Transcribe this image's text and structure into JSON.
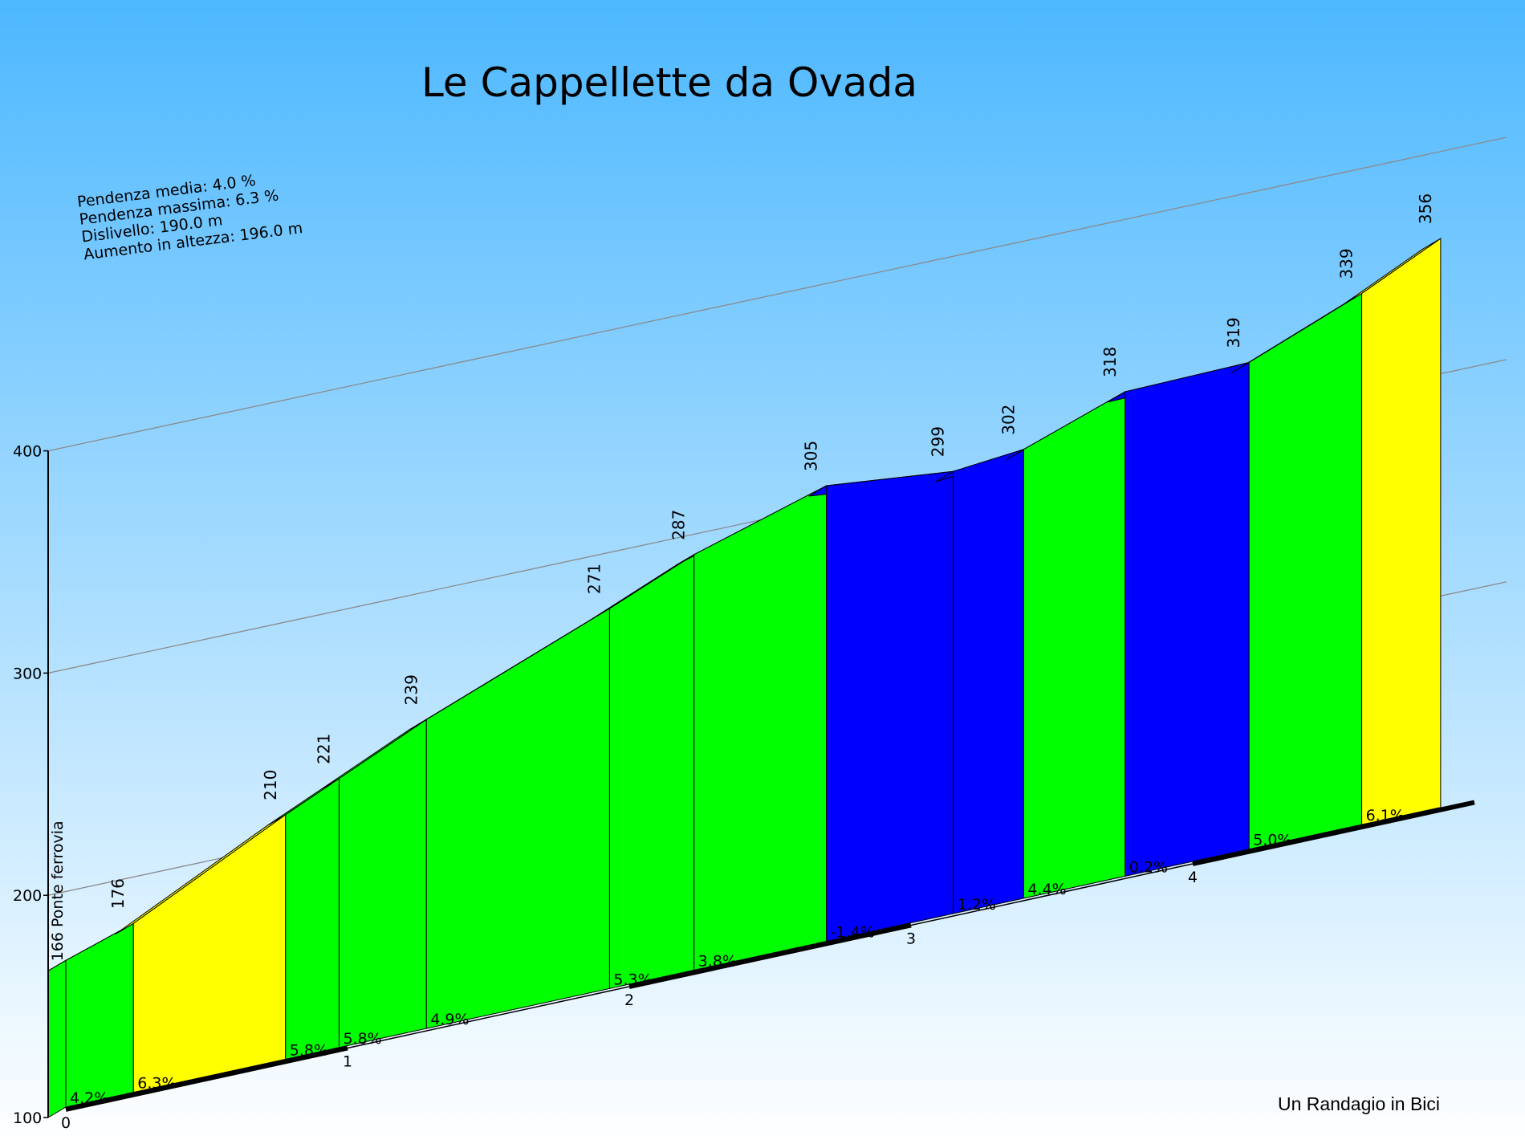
{
  "chart_data": {
    "type": "area",
    "title": "Le Cappellette da Ovada",
    "stats": [
      "Pendenza media: 4.0 %",
      "Pendenza massima: 6.3 %",
      "Dislivello: 190.0 m",
      "Aumento in altezza: 196.0 m"
    ],
    "y_ticks": [
      "100",
      "200",
      "300",
      "400"
    ],
    "ylim": [
      100,
      400
    ],
    "x_ticks": [
      "0",
      "1",
      "2",
      "3",
      "4"
    ],
    "start_label": "166 Ponte ferrovia",
    "points": [
      {
        "km": 0.0,
        "elev": 166
      },
      {
        "km": 0.24,
        "elev": 176,
        "label": "176"
      },
      {
        "km": 0.78,
        "elev": 210,
        "label": "210"
      },
      {
        "km": 0.97,
        "elev": 221,
        "label": "221"
      },
      {
        "km": 1.28,
        "elev": 239,
        "label": "239"
      },
      {
        "km": 1.93,
        "elev": 271,
        "label": "271"
      },
      {
        "km": 2.23,
        "elev": 287,
        "label": "287"
      },
      {
        "km": 2.7,
        "elev": 305,
        "label": "305"
      },
      {
        "km": 3.15,
        "elev": 299,
        "label": "299"
      },
      {
        "km": 3.4,
        "elev": 302,
        "label": "302"
      },
      {
        "km": 3.76,
        "elev": 318,
        "label": "318"
      },
      {
        "km": 4.2,
        "elev": 319,
        "label": "319"
      },
      {
        "km": 4.6,
        "elev": 339,
        "label": "339"
      },
      {
        "km": 4.88,
        "elev": 356,
        "label": "356"
      }
    ],
    "segments": [
      {
        "gradient": "4.2%",
        "color": "#00ff00"
      },
      {
        "gradient": "6.3%",
        "color": "#ffff00"
      },
      {
        "gradient": "5.8%",
        "color": "#00ff00"
      },
      {
        "gradient": "5.8%",
        "color": "#00ff00"
      },
      {
        "gradient": "4.9%",
        "color": "#00ff00"
      },
      {
        "gradient": "5.3%",
        "color": "#00ff00"
      },
      {
        "gradient": "3.8%",
        "color": "#00ff00"
      },
      {
        "gradient": "-1.4%",
        "color": "#0000ff"
      },
      {
        "gradient": "1.2%",
        "color": "#0000ff"
      },
      {
        "gradient": "4.4%",
        "color": "#00ff00"
      },
      {
        "gradient": "0.2%",
        "color": "#0000ff"
      },
      {
        "gradient": "5.0%",
        "color": "#00ff00"
      },
      {
        "gradient": "6.1%",
        "color": "#ffff00"
      }
    ],
    "credit": "Un Randagio in Bici",
    "colors": {
      "sky_top": "#4db8ff",
      "sky_bottom": "#ffffff",
      "gentle": "#00ff00",
      "steep": "#ffff00",
      "flat": "#0000ff"
    }
  }
}
